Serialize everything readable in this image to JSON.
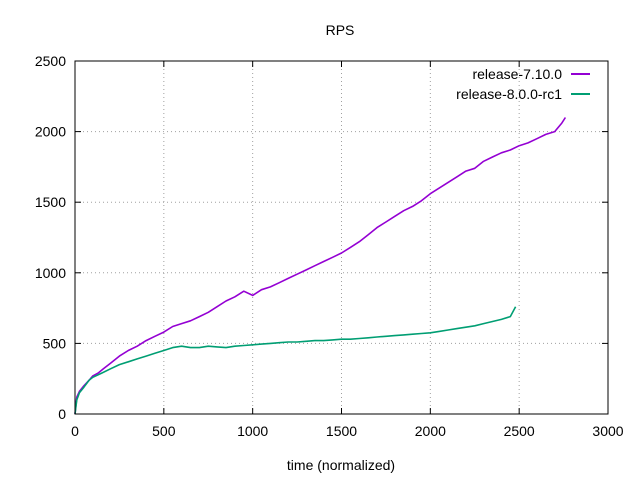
{
  "chart_data": {
    "type": "line",
    "title": "RPS",
    "xlabel": "time (normalized)",
    "ylabel": "",
    "xlim": [
      0,
      3000
    ],
    "ylim": [
      0,
      2500
    ],
    "x_ticks": [
      0,
      500,
      1000,
      1500,
      2000,
      2500,
      3000
    ],
    "y_ticks": [
      0,
      500,
      1000,
      1500,
      2000,
      2500
    ],
    "x_tick_labels": [
      "0",
      "500",
      "1000",
      "1500",
      "2000",
      "2500",
      "3000"
    ],
    "y_tick_labels": [
      "0",
      "500",
      "1000",
      "1500",
      "2000",
      "2500"
    ],
    "grid": true,
    "legend_position": "top-right",
    "series": [
      {
        "name": "release-7.10.0",
        "color": "#9400d3",
        "points": [
          [
            0,
            0
          ],
          [
            10,
            120
          ],
          [
            25,
            160
          ],
          [
            50,
            200
          ],
          [
            80,
            240
          ],
          [
            100,
            270
          ],
          [
            130,
            290
          ],
          [
            160,
            320
          ],
          [
            200,
            360
          ],
          [
            250,
            410
          ],
          [
            300,
            450
          ],
          [
            350,
            480
          ],
          [
            400,
            520
          ],
          [
            450,
            550
          ],
          [
            500,
            580
          ],
          [
            550,
            620
          ],
          [
            600,
            640
          ],
          [
            650,
            660
          ],
          [
            700,
            690
          ],
          [
            750,
            720
          ],
          [
            800,
            760
          ],
          [
            850,
            800
          ],
          [
            900,
            830
          ],
          [
            950,
            870
          ],
          [
            1000,
            840
          ],
          [
            1050,
            880
          ],
          [
            1100,
            900
          ],
          [
            1150,
            930
          ],
          [
            1200,
            960
          ],
          [
            1250,
            990
          ],
          [
            1300,
            1020
          ],
          [
            1350,
            1050
          ],
          [
            1400,
            1080
          ],
          [
            1450,
            1110
          ],
          [
            1500,
            1140
          ],
          [
            1550,
            1180
          ],
          [
            1600,
            1220
          ],
          [
            1650,
            1270
          ],
          [
            1700,
            1320
          ],
          [
            1750,
            1360
          ],
          [
            1800,
            1400
          ],
          [
            1850,
            1440
          ],
          [
            1900,
            1470
          ],
          [
            1950,
            1510
          ],
          [
            2000,
            1560
          ],
          [
            2050,
            1600
          ],
          [
            2100,
            1640
          ],
          [
            2150,
            1680
          ],
          [
            2200,
            1720
          ],
          [
            2250,
            1740
          ],
          [
            2300,
            1790
          ],
          [
            2350,
            1820
          ],
          [
            2400,
            1850
          ],
          [
            2450,
            1870
          ],
          [
            2500,
            1900
          ],
          [
            2550,
            1920
          ],
          [
            2600,
            1950
          ],
          [
            2650,
            1980
          ],
          [
            2700,
            2000
          ],
          [
            2740,
            2060
          ],
          [
            2760,
            2100
          ]
        ]
      },
      {
        "name": "release-8.0.0-rc1",
        "color": "#009e73",
        "points": [
          [
            0,
            0
          ],
          [
            10,
            100
          ],
          [
            25,
            150
          ],
          [
            50,
            190
          ],
          [
            80,
            240
          ],
          [
            100,
            260
          ],
          [
            150,
            290
          ],
          [
            200,
            320
          ],
          [
            250,
            350
          ],
          [
            300,
            370
          ],
          [
            350,
            390
          ],
          [
            400,
            410
          ],
          [
            450,
            430
          ],
          [
            500,
            450
          ],
          [
            550,
            470
          ],
          [
            600,
            480
          ],
          [
            650,
            470
          ],
          [
            700,
            470
          ],
          [
            750,
            480
          ],
          [
            800,
            475
          ],
          [
            850,
            470
          ],
          [
            900,
            480
          ],
          [
            950,
            485
          ],
          [
            1000,
            490
          ],
          [
            1050,
            495
          ],
          [
            1100,
            500
          ],
          [
            1150,
            505
          ],
          [
            1200,
            510
          ],
          [
            1250,
            510
          ],
          [
            1300,
            515
          ],
          [
            1350,
            520
          ],
          [
            1400,
            520
          ],
          [
            1450,
            525
          ],
          [
            1500,
            530
          ],
          [
            1550,
            530
          ],
          [
            1600,
            535
          ],
          [
            1650,
            540
          ],
          [
            1700,
            545
          ],
          [
            1750,
            550
          ],
          [
            1800,
            555
          ],
          [
            1850,
            560
          ],
          [
            1900,
            565
          ],
          [
            1950,
            570
          ],
          [
            2000,
            575
          ],
          [
            2050,
            585
          ],
          [
            2100,
            595
          ],
          [
            2150,
            605
          ],
          [
            2200,
            615
          ],
          [
            2250,
            625
          ],
          [
            2300,
            640
          ],
          [
            2350,
            655
          ],
          [
            2400,
            670
          ],
          [
            2450,
            690
          ],
          [
            2480,
            760
          ]
        ]
      }
    ]
  }
}
